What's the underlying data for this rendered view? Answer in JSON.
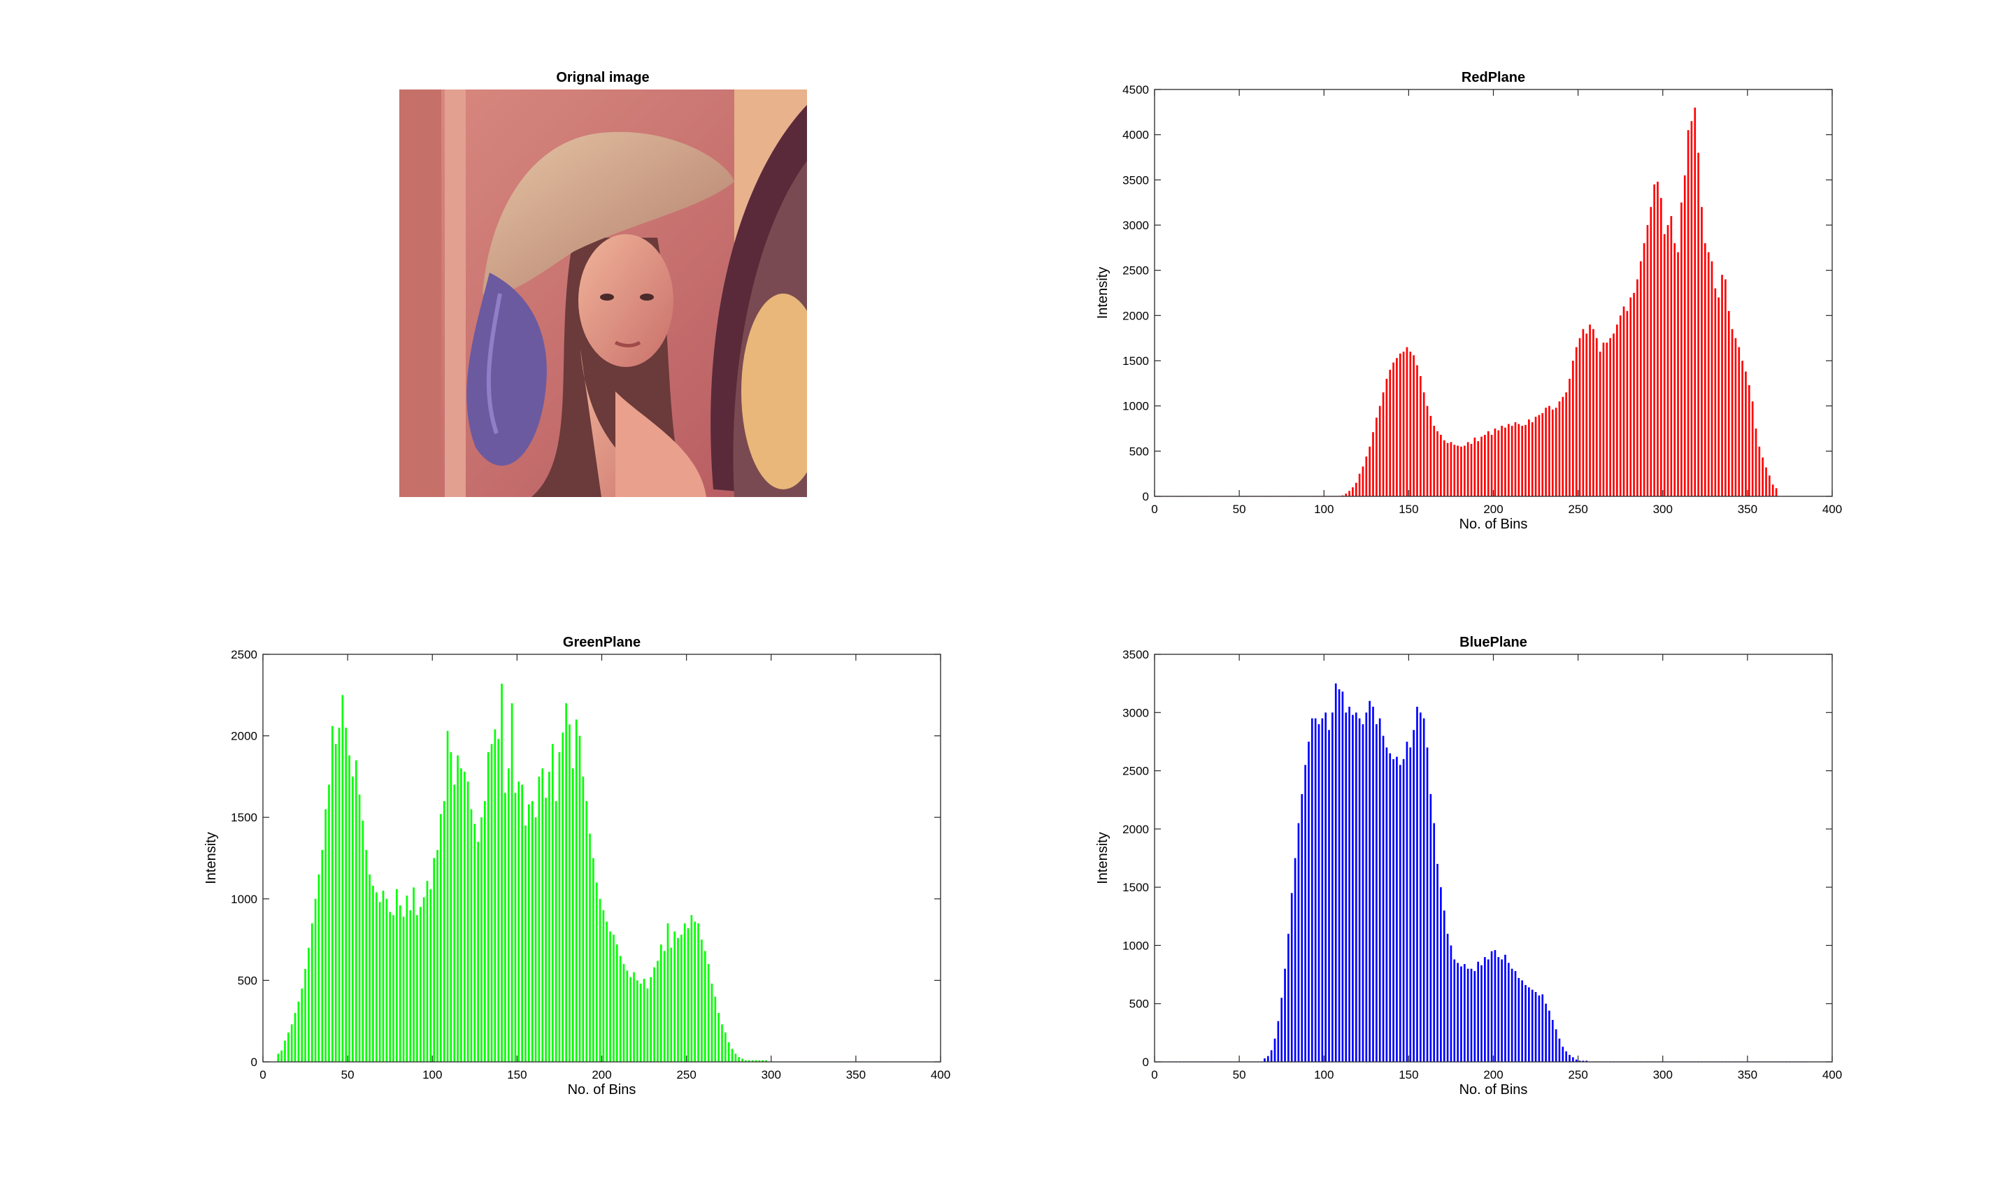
{
  "figure": {
    "background": "#ffffff"
  },
  "image_panel": {
    "title": "Orignal image"
  },
  "chart_data": [
    {
      "type": "bar",
      "title": "RedPlane",
      "xlabel": "No. of Bins",
      "ylabel": "Intensity",
      "xlim": [
        0,
        400
      ],
      "ylim": [
        0,
        4500
      ],
      "xticks": [
        0,
        50,
        100,
        150,
        200,
        250,
        300,
        350,
        400
      ],
      "yticks": [
        0,
        500,
        1000,
        1500,
        2000,
        2500,
        3000,
        3500,
        4000,
        4500
      ],
      "color": "#ff0000",
      "grid": false,
      "x_start": 1,
      "x_step": 2,
      "values": [
        0,
        0,
        0,
        0,
        0,
        0,
        0,
        0,
        0,
        0,
        0,
        0,
        0,
        0,
        0,
        0,
        0,
        0,
        0,
        0,
        0,
        0,
        0,
        0,
        0,
        0,
        0,
        0,
        0,
        0,
        0,
        0,
        0,
        0,
        0,
        0,
        0,
        0,
        0,
        0,
        0,
        0,
        0,
        0,
        0,
        0,
        0,
        0,
        0,
        0,
        0,
        0,
        0,
        0,
        5,
        10,
        30,
        60,
        100,
        150,
        250,
        330,
        440,
        550,
        710,
        870,
        1000,
        1150,
        1300,
        1400,
        1480,
        1530,
        1580,
        1600,
        1650,
        1600,
        1560,
        1450,
        1330,
        1150,
        1000,
        890,
        780,
        720,
        680,
        620,
        590,
        600,
        570,
        560,
        550,
        560,
        600,
        580,
        650,
        610,
        660,
        680,
        720,
        680,
        750,
        730,
        780,
        760,
        800,
        780,
        820,
        800,
        780,
        790,
        850,
        820,
        880,
        900,
        920,
        980,
        1000,
        960,
        980,
        1050,
        1100,
        1150,
        1300,
        1500,
        1650,
        1750,
        1850,
        1800,
        1900,
        1850,
        1750,
        1600,
        1700,
        1700,
        1750,
        1800,
        1900,
        2000,
        2100,
        2050,
        2200,
        2250,
        2400,
        2600,
        2800,
        3000,
        3200,
        3450,
        3480,
        3300,
        2900,
        3000,
        3100,
        2800,
        2700,
        3250,
        3550,
        4050,
        4150,
        4300,
        3800,
        3200,
        2800,
        2700,
        2600,
        2300,
        2200,
        2450,
        2400,
        2050,
        1850,
        1750,
        1650,
        1500,
        1380,
        1230,
        1050,
        750,
        550,
        430,
        320,
        230,
        130,
        90
      ]
    },
    {
      "type": "bar",
      "title": "GreenPlane",
      "xlabel": "No. of Bins",
      "ylabel": "Intensity",
      "xlim": [
        0,
        400
      ],
      "ylim": [
        0,
        2500
      ],
      "xticks": [
        0,
        50,
        100,
        150,
        200,
        250,
        300,
        350,
        400
      ],
      "yticks": [
        0,
        500,
        1000,
        1500,
        2000,
        2500
      ],
      "color": "#00ff00",
      "grid": false,
      "x_start": 1,
      "x_step": 2,
      "values": [
        0,
        0,
        0,
        0,
        50,
        70,
        130,
        180,
        230,
        300,
        370,
        450,
        570,
        700,
        850,
        1000,
        1150,
        1300,
        1550,
        1700,
        2060,
        1950,
        2050,
        2250,
        2050,
        1880,
        1750,
        1850,
        1640,
        1480,
        1300,
        1150,
        1080,
        1040,
        980,
        1050,
        1000,
        920,
        900,
        1060,
        960,
        890,
        1020,
        930,
        1070,
        900,
        950,
        1010,
        1110,
        1060,
        1250,
        1300,
        1520,
        1600,
        2030,
        1900,
        1700,
        1880,
        1800,
        1780,
        1720,
        1550,
        1460,
        1350,
        1500,
        1600,
        1900,
        1950,
        2040,
        1980,
        2320,
        1650,
        1800,
        2200,
        1650,
        1720,
        1700,
        1450,
        1580,
        1600,
        1500,
        1750,
        1800,
        1620,
        1780,
        1950,
        1600,
        1900,
        2020,
        2200,
        2070,
        1800,
        2100,
        2000,
        1750,
        1600,
        1400,
        1250,
        1100,
        1000,
        930,
        860,
        800,
        780,
        720,
        650,
        600,
        560,
        520,
        550,
        500,
        480,
        510,
        450,
        520,
        580,
        620,
        720,
        680,
        850,
        700,
        800,
        760,
        780,
        850,
        820,
        900,
        860,
        850,
        750,
        680,
        600,
        480,
        400,
        300,
        230,
        180,
        120,
        80,
        50,
        30,
        20,
        10,
        10,
        10,
        10,
        10,
        10,
        10,
        0,
        0,
        0,
        0,
        0,
        0,
        0,
        0,
        0,
        0,
        0,
        0,
        0,
        0,
        0,
        0,
        0,
        0,
        0,
        0,
        0,
        0,
        0,
        0,
        0,
        0,
        0,
        0,
        0,
        0,
        0,
        0,
        0,
        0,
        0
      ]
    },
    {
      "type": "bar",
      "title": "BluePlane",
      "xlabel": "No. of Bins",
      "ylabel": "Intensity",
      "xlim": [
        0,
        400
      ],
      "ylim": [
        0,
        3500
      ],
      "xticks": [
        0,
        50,
        100,
        150,
        200,
        250,
        300,
        350,
        400
      ],
      "yticks": [
        0,
        500,
        1000,
        1500,
        2000,
        2500,
        3000,
        3500
      ],
      "color": "#0000ff",
      "grid": false,
      "x_start": 1,
      "x_step": 2,
      "values": [
        0,
        0,
        0,
        0,
        0,
        0,
        0,
        0,
        0,
        0,
        0,
        0,
        0,
        0,
        0,
        0,
        0,
        0,
        0,
        0,
        0,
        0,
        0,
        0,
        0,
        0,
        0,
        0,
        0,
        0,
        0,
        0,
        30,
        50,
        100,
        200,
        350,
        550,
        800,
        1100,
        1450,
        1750,
        2050,
        2300,
        2550,
        2750,
        2950,
        2950,
        2900,
        2950,
        3000,
        2850,
        3000,
        3250,
        3200,
        3180,
        3000,
        3050,
        2980,
        3000,
        2950,
        2900,
        3000,
        3100,
        3050,
        2900,
        2950,
        2800,
        2700,
        2650,
        2600,
        2620,
        2550,
        2600,
        2750,
        2700,
        2850,
        3050,
        3000,
        2950,
        2700,
        2300,
        2050,
        1700,
        1500,
        1300,
        1100,
        1000,
        880,
        850,
        820,
        840,
        800,
        800,
        780,
        860,
        830,
        900,
        880,
        950,
        960,
        900,
        880,
        920,
        850,
        800,
        780,
        720,
        700,
        660,
        640,
        620,
        600,
        570,
        580,
        500,
        440,
        360,
        280,
        200,
        130,
        90,
        60,
        40,
        20,
        10,
        10,
        10,
        0,
        0,
        0,
        0,
        0,
        0,
        0,
        0,
        0,
        0,
        0,
        0,
        0,
        0,
        0,
        0,
        0,
        0,
        0,
        0,
        0,
        0,
        0,
        0,
        0,
        0,
        0,
        0,
        0,
        0,
        0,
        0,
        0,
        0,
        0,
        0,
        0,
        0,
        0,
        0,
        0,
        0,
        0,
        0,
        0,
        0,
        0,
        0,
        0,
        0,
        0,
        0,
        0,
        0,
        0,
        0,
        0,
        0,
        0,
        0,
        0,
        0,
        0,
        0,
        0
      ]
    }
  ]
}
